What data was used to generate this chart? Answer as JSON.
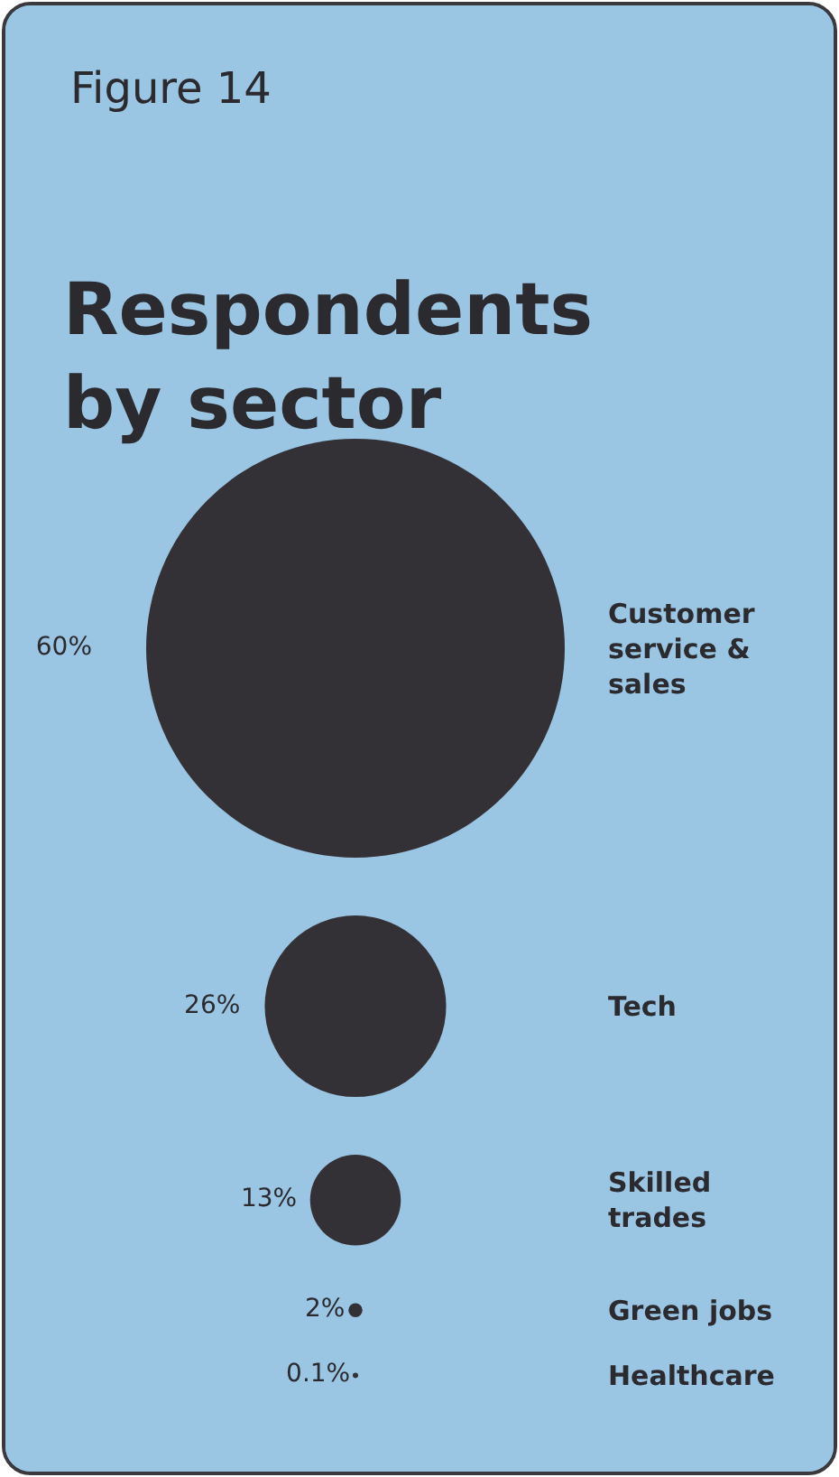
{
  "chart_data": {
    "type": "other",
    "title": "Respondents by sector",
    "annotations": [
      "Figure 14"
    ],
    "categories": [
      "Customer service & sales",
      "Tech",
      "Skilled trades",
      "Green jobs",
      "Healthcare"
    ],
    "values": [
      60,
      26,
      13,
      2,
      0.1
    ],
    "value_labels": [
      "60%",
      "26%",
      "13%",
      "2%",
      "0.1%"
    ],
    "color": "#333135",
    "legend": false
  }
}
